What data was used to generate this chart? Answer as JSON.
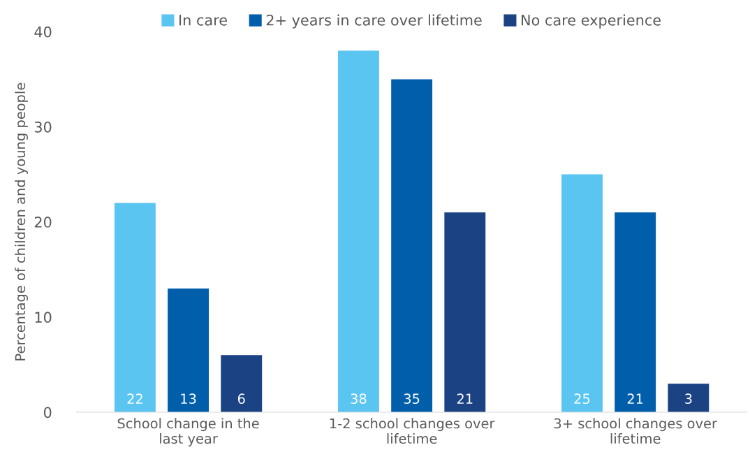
{
  "chart_data": {
    "type": "bar",
    "ylabel": "Percentage of children and young people",
    "categories": [
      "School change in the last year",
      "1-2 school changes over lifetime",
      "3+ school changes over lifetime"
    ],
    "series": [
      {
        "name": "In care",
        "color": "#5bc5f2",
        "values": [
          22,
          38,
          25
        ]
      },
      {
        "name": "2+ years in care over lifetime",
        "color": "#005eaa",
        "values": [
          13,
          35,
          21
        ]
      },
      {
        "name": "No care experience",
        "color": "#1b4383",
        "values": [
          6,
          21,
          3
        ]
      }
    ],
    "ylim": [
      0,
      40
    ],
    "yticks": [
      0,
      10,
      20,
      30,
      40
    ],
    "grid": false,
    "legend": "top",
    "data_labels": true
  }
}
